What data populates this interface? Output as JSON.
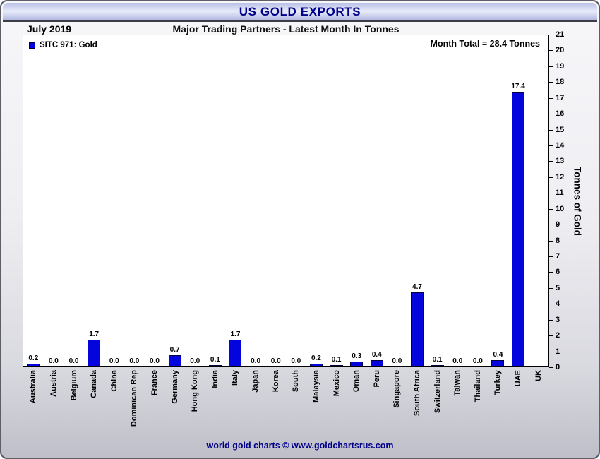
{
  "window": {
    "title": "US GOLD EXPORTS"
  },
  "header": {
    "date": "July 2019",
    "subtitle": "Major Trading Partners - Latest Month In Tonnes"
  },
  "legend": {
    "label": "SITC 971: Gold"
  },
  "annotation": {
    "month_total": "Month Total = 28.4 Tonnes"
  },
  "footer": {
    "credit": "world gold charts © www.goldchartsrus.com"
  },
  "colors": {
    "bar": "#0404dd",
    "accent_navy": "#00008b"
  },
  "chart_data": {
    "type": "bar",
    "title": "US GOLD EXPORTS",
    "subtitle": "Major Trading Partners - Latest Month In Tonnes",
    "period": "July 2019",
    "legend": [
      "SITC 971: Gold"
    ],
    "legend_position": "top-left",
    "annotation": "Month Total = 28.4 Tonnes",
    "ylabel": "Tonnes of Gold",
    "ylim": [
      0,
      21
    ],
    "ytick_step": 1,
    "grid": false,
    "categories": [
      "Australia",
      "Austria",
      "Belgium",
      "Canada",
      "China",
      "Dominican Rep",
      "France",
      "Germany",
      "Hong Kong",
      "India",
      "Italy",
      "Japan",
      "Korea",
      "South",
      "Malaysia",
      "Mexico",
      "Oman",
      "Peru",
      "Singapore",
      "South Africa",
      "Switzerland",
      "Taiwan",
      "Thailand",
      "Turkey",
      "UAE",
      "UK"
    ],
    "values": [
      0.2,
      0.0,
      0.0,
      1.7,
      0.0,
      0.0,
      0.0,
      0.7,
      0.0,
      0.1,
      1.7,
      0.0,
      0.0,
      0.0,
      0.2,
      0.1,
      0.3,
      0.4,
      0.0,
      4.7,
      0.1,
      0.0,
      0.0,
      0.4,
      17.4,
      0.0
    ],
    "value_labels": [
      "0.2",
      "0.0",
      "0.0",
      "1.7",
      "0.0",
      "0.0",
      "0.0",
      "0.7",
      "0.0",
      "0.1",
      "1.7",
      "0.0",
      "0.0",
      "0.0",
      "0.2",
      "0.1",
      "0.3",
      "0.4",
      "0.0",
      "4.7",
      "0.1",
      "0.0",
      "0.0",
      "0.4",
      "17.4",
      ""
    ]
  }
}
